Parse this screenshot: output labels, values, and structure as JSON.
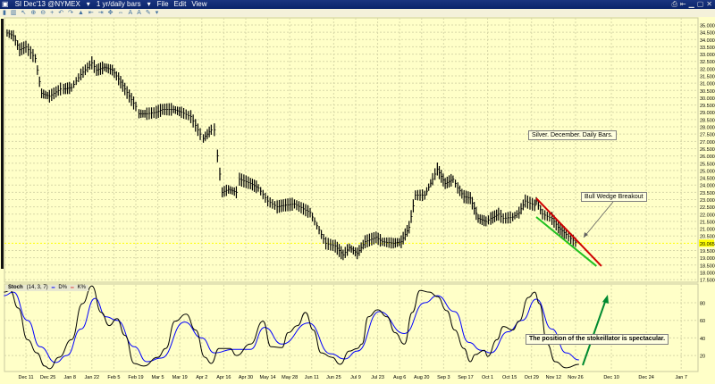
{
  "window": {
    "symbol": "SI Dec'13 @NYMEX",
    "interval": "1 yr/daily bars",
    "menus": [
      "File",
      "Edit",
      "View"
    ]
  },
  "toolbar_icons": [
    "cursor-icon",
    "bars-icon",
    "draw-icon",
    "zoom-in-icon",
    "zoom-out-icon",
    "crosshair-icon",
    "undo-icon",
    "redo-icon",
    "indicator-icon",
    "scroll-left-icon",
    "scroll-right-icon",
    "pan-icon",
    "fit-icon",
    "text-icon",
    "font-icon",
    "pencil-icon",
    "dropdown-icon"
  ],
  "annotations": {
    "title": "Silver. December. Daily Bars.",
    "wedge": "Bull Wedge Breakout",
    "stoch": "The position of the stokeillator is spectacular."
  },
  "stoch_header": {
    "name": "Stoch",
    "params": "(14, 3, 7)",
    "d_label": "D%",
    "k_label": "K%"
  },
  "colors": {
    "background": "#ffffc8",
    "bars": "#000000",
    "k_line": "#000000",
    "d_line": "#0000ff",
    "wedge_top": "#d00000",
    "wedge_bottom": "#20c020",
    "arrow": "#008a30",
    "last_price": "#ffff00"
  },
  "chart_data": [
    {
      "type": "ohlc-bar",
      "title": "",
      "last_price": "20.065",
      "ylim": [
        17.5,
        35.5
      ],
      "y_ticks": [
        "35.000",
        "34.500",
        "34.000",
        "33.500",
        "33.000",
        "32.500",
        "32.000",
        "31.500",
        "31.000",
        "30.500",
        "30.000",
        "29.500",
        "29.000",
        "28.500",
        "28.000",
        "27.500",
        "27.000",
        "26.500",
        "26.000",
        "25.500",
        "25.000",
        "24.500",
        "24.000",
        "23.500",
        "23.000",
        "22.500",
        "22.000",
        "21.500",
        "21.000",
        "20.500",
        "20.065",
        "19.500",
        "19.000",
        "18.500",
        "18.000",
        "17.500"
      ],
      "closes": [
        [
          "2012-11-29",
          34.45
        ],
        [
          "2012-12-03",
          34.26
        ],
        [
          "2012-12-07",
          33.3
        ],
        [
          "2012-12-11",
          33.5
        ],
        [
          "2012-12-17",
          32.7
        ],
        [
          "2012-12-21",
          30.3
        ],
        [
          "2012-12-26",
          30.1
        ],
        [
          "2013-01-02",
          30.6
        ],
        [
          "2013-01-04",
          30.6
        ],
        [
          "2013-01-09",
          30.7
        ],
        [
          "2013-01-15",
          31.6
        ],
        [
          "2013-01-22",
          32.4
        ],
        [
          "2013-01-25",
          31.9
        ],
        [
          "2013-01-30",
          32.1
        ],
        [
          "2013-02-04",
          31.9
        ],
        [
          "2013-02-08",
          31.3
        ],
        [
          "2013-02-12",
          30.6
        ],
        [
          "2013-02-19",
          29.4
        ],
        [
          "2013-02-21",
          28.9
        ],
        [
          "2013-02-26",
          28.9
        ],
        [
          "2013-03-04",
          29.0
        ],
        [
          "2013-03-08",
          29.2
        ],
        [
          "2013-03-15",
          29.2
        ],
        [
          "2013-03-20",
          29.0
        ],
        [
          "2013-03-26",
          28.7
        ],
        [
          "2013-04-01",
          27.5
        ],
        [
          "2013-04-03",
          27.2
        ],
        [
          "2013-04-08",
          27.8
        ],
        [
          "2013-04-10",
          27.8
        ],
        [
          "2013-04-12",
          26.0
        ],
        [
          "2013-04-15",
          23.5
        ],
        [
          "2013-04-19",
          23.7
        ],
        [
          "2013-04-24",
          23.5
        ],
        [
          "2013-04-26",
          24.4
        ],
        [
          "2013-05-03",
          24.1
        ],
        [
          "2013-05-08",
          23.8
        ],
        [
          "2013-05-14",
          22.9
        ],
        [
          "2013-05-20",
          22.5
        ],
        [
          "2013-05-24",
          22.6
        ],
        [
          "2013-05-31",
          22.7
        ],
        [
          "2013-06-10",
          22.1
        ],
        [
          "2013-06-20",
          20.0
        ],
        [
          "2013-06-26",
          19.8
        ],
        [
          "2013-07-01",
          19.2
        ],
        [
          "2013-07-05",
          19.7
        ],
        [
          "2013-07-10",
          19.3
        ],
        [
          "2013-07-15",
          20.1
        ],
        [
          "2013-07-22",
          20.4
        ],
        [
          "2013-07-26",
          20.1
        ],
        [
          "2013-08-02",
          20.0
        ],
        [
          "2013-08-07",
          20.1
        ],
        [
          "2013-08-12",
          21.1
        ],
        [
          "2013-08-16",
          23.3
        ],
        [
          "2013-08-22",
          23.3
        ],
        [
          "2013-08-27",
          24.4
        ],
        [
          "2013-08-30",
          25.1
        ],
        [
          "2013-09-04",
          24.1
        ],
        [
          "2013-09-09",
          24.4
        ],
        [
          "2013-09-12",
          23.8
        ],
        [
          "2013-09-16",
          23.2
        ],
        [
          "2013-09-20",
          23.1
        ],
        [
          "2013-09-25",
          21.7
        ],
        [
          "2013-09-30",
          21.5
        ],
        [
          "2013-10-03",
          21.7
        ],
        [
          "2013-10-08",
          22.0
        ],
        [
          "2013-10-11",
          21.7
        ],
        [
          "2013-10-17",
          21.8
        ],
        [
          "2013-10-21",
          22.1
        ],
        [
          "2013-10-25",
          22.9
        ],
        [
          "2013-10-31",
          22.6
        ],
        [
          "2013-11-01",
          22.9
        ],
        [
          "2013-11-05",
          22.0
        ],
        [
          "2013-11-11",
          21.7
        ],
        [
          "2013-11-15",
          21.1
        ],
        [
          "2013-11-20",
          20.6
        ],
        [
          "2013-11-26",
          20.065
        ]
      ],
      "trendlines": [
        {
          "name": "wedge-top",
          "from": [
            "2013-11-01",
            23.09
          ],
          "to": [
            "2013-12-06",
            18.43
          ]
        },
        {
          "name": "wedge-bottom",
          "from": [
            "2013-11-01",
            21.8
          ],
          "to": [
            "2013-12-04",
            18.43
          ]
        }
      ]
    },
    {
      "type": "line",
      "title": "Stoch (14, 3, 7)",
      "ylim": [
        0,
        100
      ],
      "y_ticks": [
        "80",
        "60",
        "40",
        "20"
      ],
      "x_ticks": [
        "Dec 11",
        "Dec 25",
        "Jan 8",
        "Jan 22",
        "Feb 5",
        "Feb 19",
        "Mar 5",
        "Mar 19",
        "Apr 2",
        "Apr 16",
        "Apr 30",
        "May 14",
        "May 28",
        "Jun 11",
        "Jun 25",
        "Jul 9",
        "Jul 23",
        "Aug 6",
        "Aug 20",
        "Sep 3",
        "Sep 17",
        "Oct 1",
        "Oct 15",
        "Oct 29",
        "Nov 12",
        "Nov 26",
        "Dec 10",
        "Dec 24",
        "Jan 7"
      ],
      "x_tick_dates": [
        "2012-12-11",
        "2012-12-25",
        "2013-01-08",
        "2013-01-22",
        "2013-02-05",
        "2013-02-19",
        "2013-03-05",
        "2013-03-19",
        "2013-04-02",
        "2013-04-16",
        "2013-04-30",
        "2013-05-14",
        "2013-05-28",
        "2013-06-11",
        "2013-06-25",
        "2013-07-09",
        "2013-07-23",
        "2013-08-06",
        "2013-08-20",
        "2013-09-03",
        "2013-09-17",
        "2013-10-01",
        "2013-10-15",
        "2013-10-29",
        "2013-11-12",
        "2013-11-26",
        "2013-12-10",
        "2013-12-24",
        "2014-01-07"
      ],
      "series": [
        {
          "name": "K%",
          "values": [
            [
              "2012-11-27",
              92
            ],
            [
              "2012-12-01",
              94
            ],
            [
              "2012-12-06",
              74
            ],
            [
              "2012-12-12",
              38
            ],
            [
              "2012-12-18",
              23
            ],
            [
              "2012-12-23",
              8
            ],
            [
              "2012-12-26",
              5
            ],
            [
              "2013-01-01",
              18
            ],
            [
              "2013-01-09",
              38
            ],
            [
              "2013-01-16",
              79
            ],
            [
              "2013-01-22",
              99
            ],
            [
              "2013-01-28",
              69
            ],
            [
              "2013-02-02",
              54
            ],
            [
              "2013-02-07",
              62
            ],
            [
              "2013-02-12",
              43
            ],
            [
              "2013-02-18",
              11
            ],
            [
              "2013-02-24",
              8
            ],
            [
              "2013-03-05",
              18
            ],
            [
              "2013-03-10",
              28
            ],
            [
              "2013-03-16",
              59
            ],
            [
              "2013-03-23",
              67
            ],
            [
              "2013-03-29",
              49
            ],
            [
              "2013-04-04",
              18
            ],
            [
              "2013-04-08",
              11
            ],
            [
              "2013-04-13",
              28
            ],
            [
              "2013-04-20",
              28
            ],
            [
              "2013-04-24",
              20
            ],
            [
              "2013-05-03",
              33
            ],
            [
              "2013-05-11",
              59
            ],
            [
              "2013-05-16",
              30
            ],
            [
              "2013-05-23",
              29
            ],
            [
              "2013-05-27",
              46
            ],
            [
              "2013-06-02",
              54
            ],
            [
              "2013-06-07",
              69
            ],
            [
              "2013-06-12",
              49
            ],
            [
              "2013-06-17",
              23
            ],
            [
              "2013-06-24",
              18
            ],
            [
              "2013-06-29",
              10
            ],
            [
              "2013-07-05",
              25
            ],
            [
              "2013-07-10",
              28
            ],
            [
              "2013-07-13",
              33
            ],
            [
              "2013-07-17",
              64
            ],
            [
              "2013-07-23",
              72
            ],
            [
              "2013-07-29",
              64
            ],
            [
              "2013-08-03",
              46
            ],
            [
              "2013-08-09",
              33
            ],
            [
              "2013-08-14",
              69
            ],
            [
              "2013-08-19",
              94
            ],
            [
              "2013-08-25",
              92
            ],
            [
              "2013-08-30",
              87
            ],
            [
              "2013-09-05",
              71
            ],
            [
              "2013-09-10",
              49
            ],
            [
              "2013-09-16",
              28
            ],
            [
              "2013-09-20",
              13
            ],
            [
              "2013-09-23",
              21
            ],
            [
              "2013-09-29",
              26
            ],
            [
              "2013-10-01",
              19
            ],
            [
              "2013-10-07",
              38
            ],
            [
              "2013-10-11",
              53
            ],
            [
              "2013-10-17",
              49
            ],
            [
              "2013-10-21",
              59
            ],
            [
              "2013-10-27",
              86
            ],
            [
              "2013-10-31",
              92
            ],
            [
              "2013-11-03",
              79
            ],
            [
              "2013-11-08",
              33
            ],
            [
              "2013-11-13",
              13
            ],
            [
              "2013-11-20",
              6
            ],
            [
              "2013-11-27",
              10
            ]
          ]
        },
        {
          "name": "D%",
          "values": [
            [
              "2012-11-27",
              88
            ],
            [
              "2012-12-03",
              92
            ],
            [
              "2012-12-12",
              60
            ],
            [
              "2012-12-20",
              30
            ],
            [
              "2012-12-30",
              12
            ],
            [
              "2013-01-06",
              20
            ],
            [
              "2013-01-15",
              50
            ],
            [
              "2013-01-24",
              85
            ],
            [
              "2013-01-31",
              64
            ],
            [
              "2013-02-07",
              60
            ],
            [
              "2013-02-18",
              30
            ],
            [
              "2013-02-26",
              13
            ],
            [
              "2013-03-07",
              17
            ],
            [
              "2013-03-22",
              58
            ],
            [
              "2013-04-02",
              40
            ],
            [
              "2013-04-10",
              23
            ],
            [
              "2013-04-22",
              27
            ],
            [
              "2013-05-03",
              27
            ],
            [
              "2013-05-12",
              52
            ],
            [
              "2013-05-23",
              33
            ],
            [
              "2013-06-09",
              57
            ],
            [
              "2013-06-23",
              22
            ],
            [
              "2013-07-02",
              16
            ],
            [
              "2013-07-10",
              25
            ],
            [
              "2013-07-24",
              70
            ],
            [
              "2013-08-09",
              45
            ],
            [
              "2013-08-22",
              80
            ],
            [
              "2013-08-30",
              88
            ],
            [
              "2013-09-10",
              70
            ],
            [
              "2013-09-19",
              35
            ],
            [
              "2013-09-27",
              26
            ],
            [
              "2013-10-03",
              23
            ],
            [
              "2013-10-14",
              47
            ],
            [
              "2013-10-23",
              60
            ],
            [
              "2013-11-01",
              84
            ],
            [
              "2013-11-11",
              50
            ],
            [
              "2013-11-20",
              23
            ],
            [
              "2013-11-27",
              15
            ]
          ]
        }
      ]
    }
  ]
}
